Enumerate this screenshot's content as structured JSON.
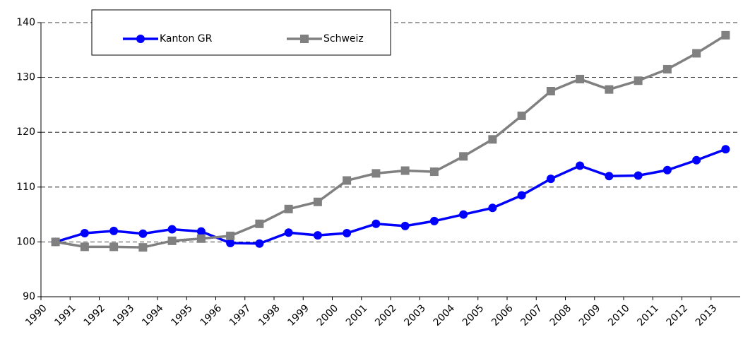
{
  "chart_data": {
    "type": "line",
    "categories": [
      "1990",
      "1991",
      "1992",
      "1993",
      "1994",
      "1995",
      "1996",
      "1997",
      "1998",
      "1999",
      "2000",
      "2001",
      "2002",
      "2003",
      "2004",
      "2005",
      "2006",
      "2007",
      "2008",
      "2009",
      "2010",
      "2011",
      "2012",
      "2013"
    ],
    "series": [
      {
        "name": "Kanton GR",
        "color": "#0000ff",
        "marker": "circle",
        "values": [
          100,
          101.6,
          102,
          101.5,
          102.3,
          101.9,
          99.8,
          99.7,
          101.7,
          101.2,
          101.6,
          103.3,
          102.9,
          103.8,
          105,
          106.2,
          108.5,
          111.5,
          113.9,
          112,
          112.1,
          113.1,
          114.9,
          116.9
        ]
      },
      {
        "name": "Schweiz",
        "color": "#808080",
        "marker": "square",
        "values": [
          100,
          99.1,
          99.1,
          99,
          100.2,
          100.6,
          101.1,
          103.3,
          106,
          107.3,
          111.2,
          112.5,
          113,
          112.8,
          115.6,
          118.7,
          123,
          127.5,
          129.7,
          127.8,
          129.4,
          131.5,
          134.4,
          137.7
        ]
      }
    ],
    "ylim": [
      90,
      140
    ],
    "yticks": [
      90,
      100,
      110,
      120,
      130,
      140
    ],
    "grid": true
  }
}
